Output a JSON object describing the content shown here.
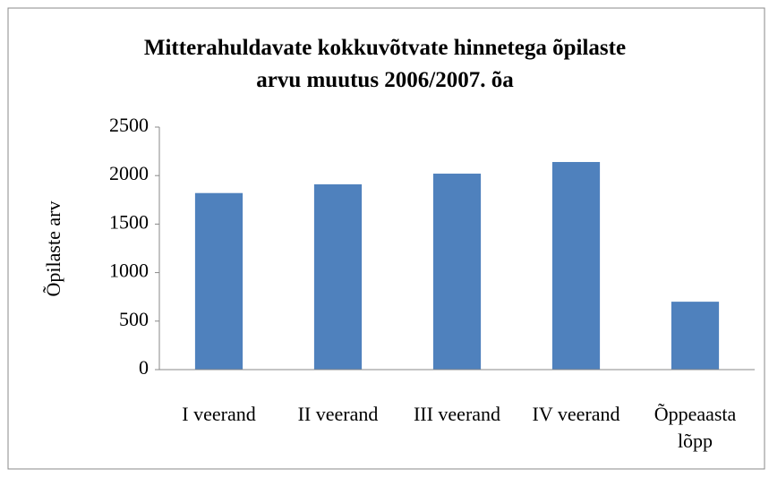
{
  "chart_data": {
    "type": "bar",
    "title": "Mitterahuldavate kokkuvõtvate hinnetega õpilaste\narvu muutus 2006/2007. õa",
    "y_label": "Õpilaste arv",
    "categories": [
      "I veerand",
      "II veerand",
      "III veerand",
      "IV veerand",
      "Õppeaasta lõpp"
    ],
    "values": [
      1820,
      1910,
      2020,
      2140,
      700
    ],
    "color": "#4f81bd",
    "ylim": [
      0,
      2500
    ],
    "yticks": [
      0,
      500,
      1000,
      1500,
      2000,
      2500
    ],
    "grid": false
  }
}
